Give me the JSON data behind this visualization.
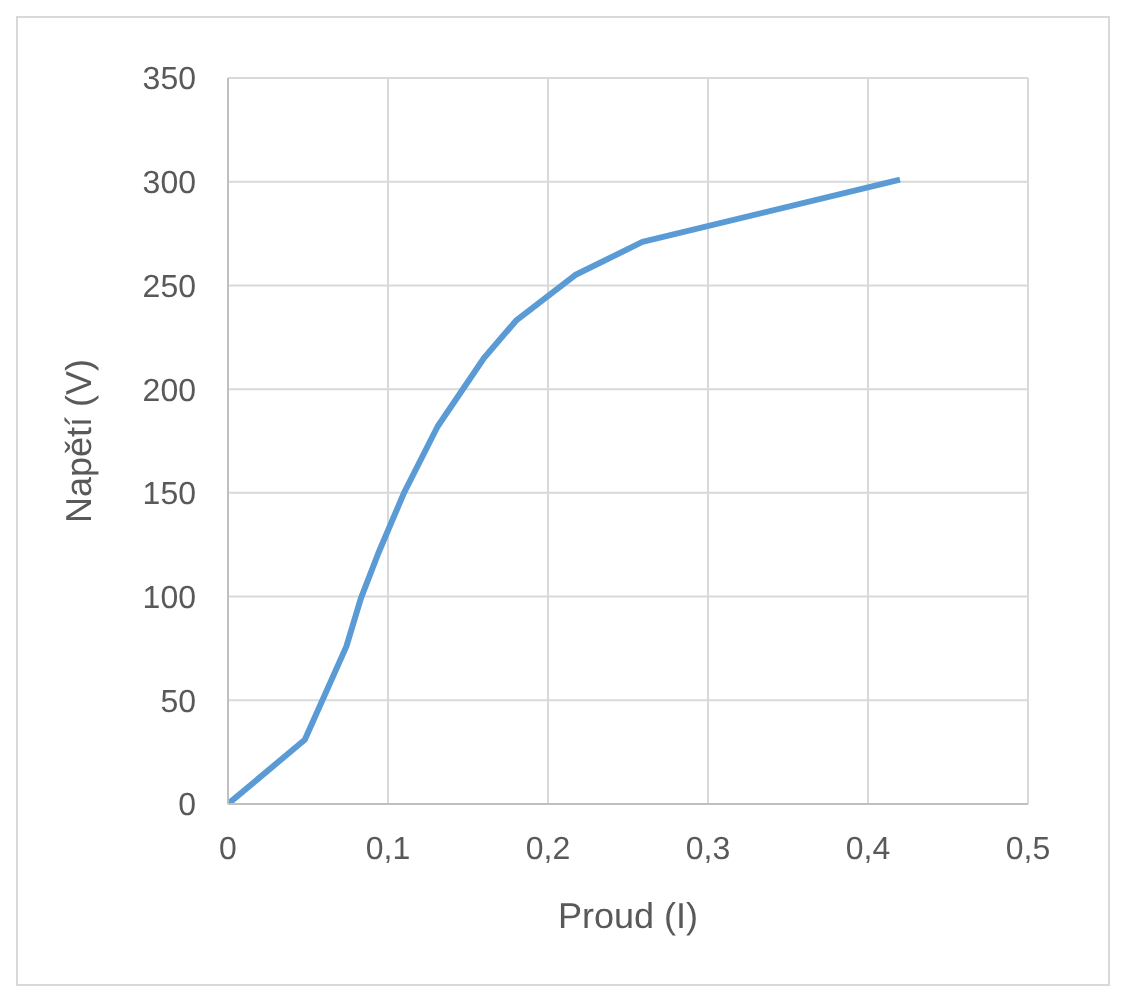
{
  "chart_data": {
    "type": "line",
    "xlabel": "Proud (I)",
    "ylabel": "Napětí (V)",
    "x": [
      0,
      0.048,
      0.074,
      0.083,
      0.094,
      0.11,
      0.131,
      0.16,
      0.18,
      0.217,
      0.259,
      0.42
    ],
    "series": [
      {
        "color": "#5b9bd5",
        "values": [
          0,
          31,
          76,
          99,
          121,
          150,
          182,
          215,
          233,
          255,
          271,
          301
        ]
      }
    ],
    "xlim": [
      0,
      0.5
    ],
    "xticks": [
      {
        "value": 0,
        "label": "0"
      },
      {
        "value": 0.1,
        "label": "0,1"
      },
      {
        "value": 0.2,
        "label": "0,2"
      },
      {
        "value": 0.3,
        "label": "0,3"
      },
      {
        "value": 0.4,
        "label": "0,4"
      },
      {
        "value": 0.5,
        "label": "0,5"
      }
    ],
    "ylim": [
      0,
      350
    ],
    "yticks": [
      0,
      50,
      100,
      150,
      200,
      250,
      300,
      350
    ],
    "grid": true,
    "marker": "none",
    "line_style": "solid"
  }
}
